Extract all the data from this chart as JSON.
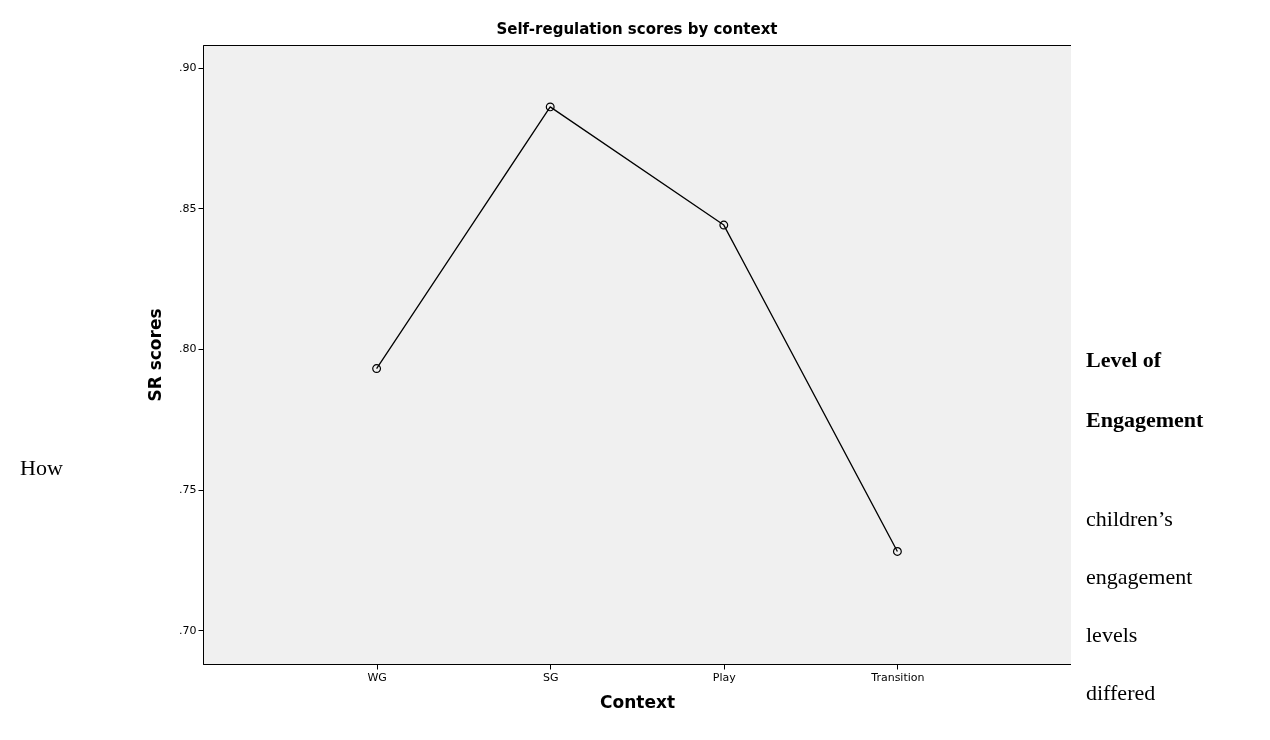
{
  "chart_data": {
    "type": "line",
    "title": "Self-regulation scores by context",
    "xlabel": "Context",
    "ylabel": "SR scores",
    "categories": [
      "WG",
      "SG",
      "Play",
      "Transition"
    ],
    "series": [
      {
        "color": "#000000",
        "values": [
          0.793,
          0.886,
          0.844,
          0.728
        ]
      }
    ],
    "ylim": [
      0.688,
      0.908
    ],
    "yticks": [
      {
        "value": 0.7,
        "label": ".70"
      },
      {
        "value": 0.75,
        "label": ".75"
      },
      {
        "value": 0.8,
        "label": ".80"
      },
      {
        "value": 0.85,
        "label": ".85"
      },
      {
        "value": 0.9,
        "label": ".90"
      }
    ],
    "grid": false,
    "marker": "circle",
    "line_style": "solid",
    "annotations": [
      "How",
      "Level of Engagement",
      "children’s engagement levels differed"
    ]
  }
}
